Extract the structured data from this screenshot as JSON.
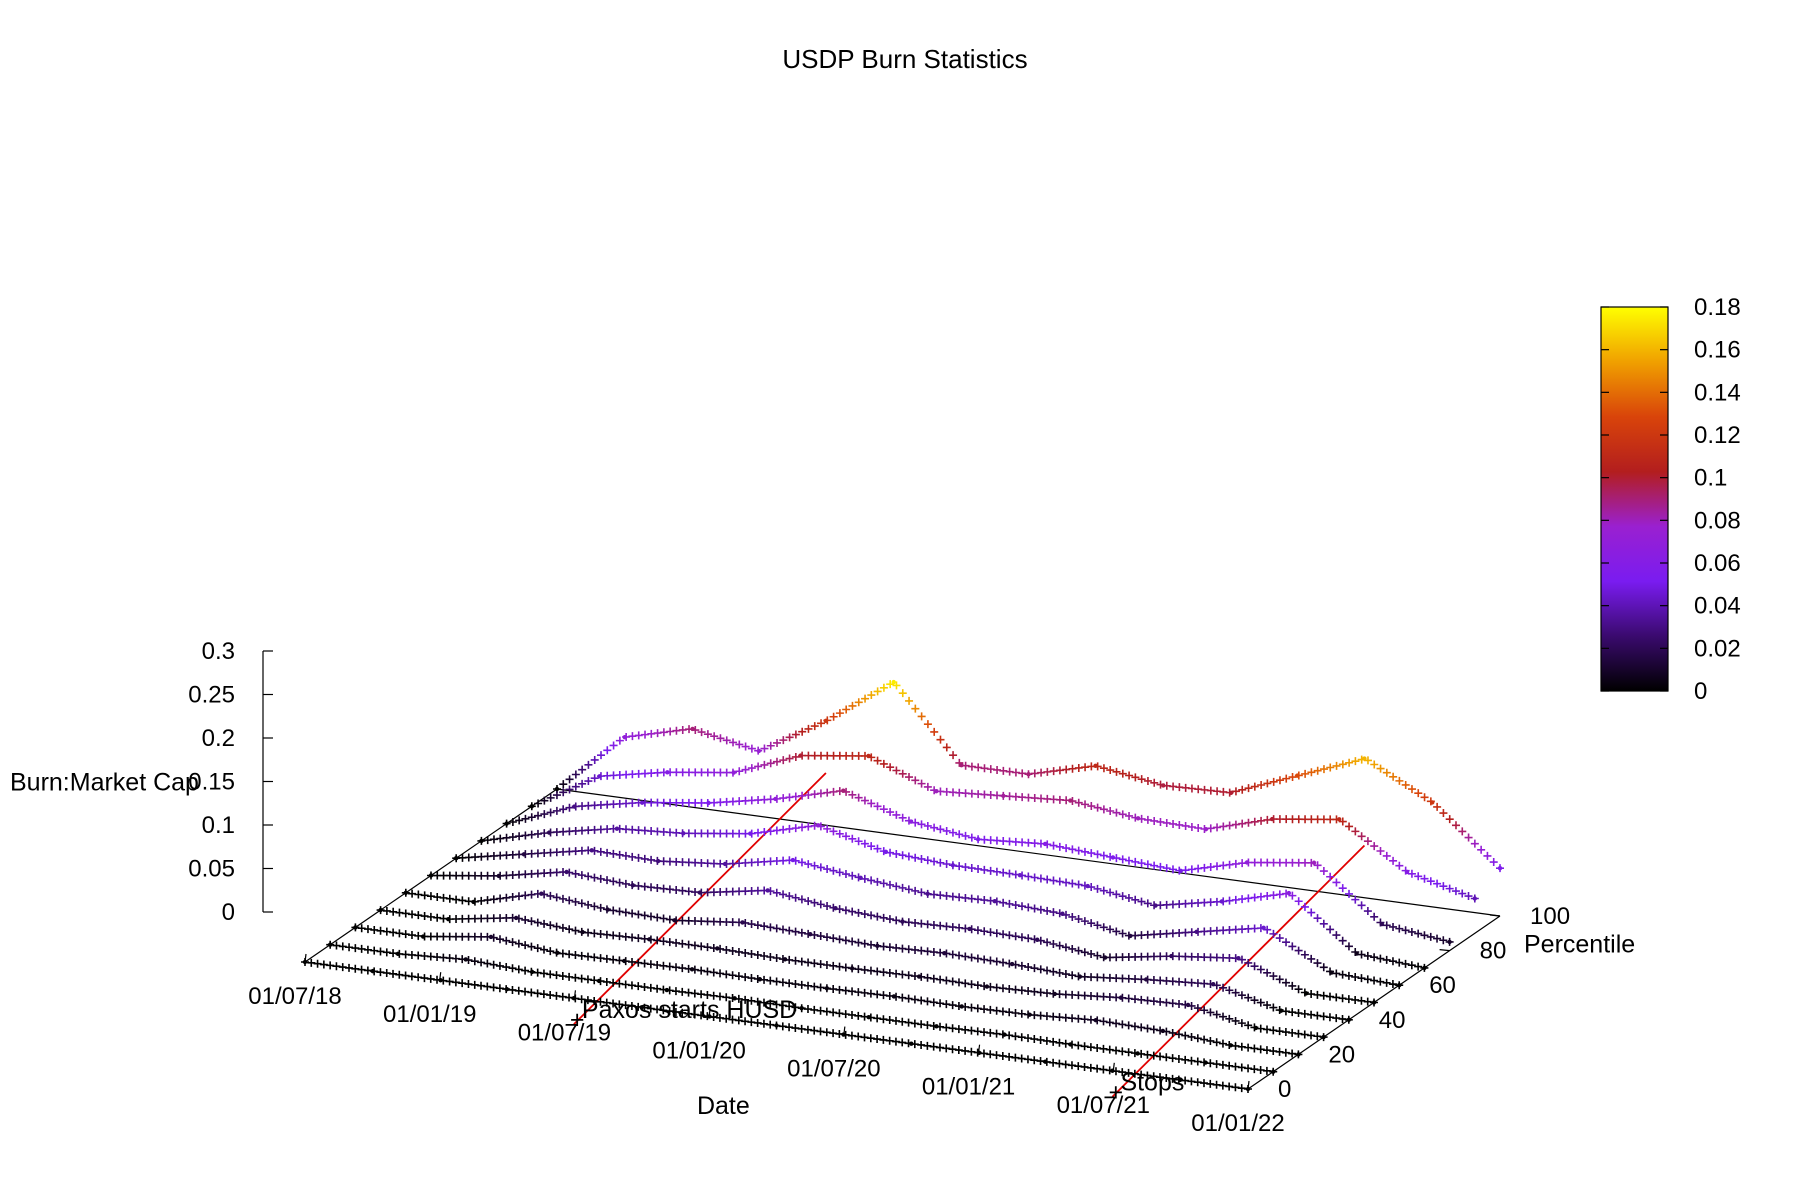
{
  "chart_data": {
    "type": "scatter",
    "title": "USDP Burn Statistics",
    "xlabel": "Date",
    "ylabel": "Percentile",
    "zlabel": "Burn:Market Cap",
    "x_ticks": [
      "01/07/18",
      "01/01/19",
      "01/07/19",
      "01/01/20",
      "01/07/20",
      "01/01/21",
      "01/07/21",
      "01/01/22"
    ],
    "xlim": [
      "01/07/18",
      "01/01/22"
    ],
    "ylim": [
      0,
      100
    ],
    "y_ticks": [
      "0",
      "20",
      "40",
      "60",
      "80",
      "100"
    ],
    "zlim": [
      0,
      0.3
    ],
    "z_ticks": [
      "0",
      "0.05",
      "0.1",
      "0.15",
      "0.2",
      "0.25",
      "0.3"
    ],
    "colorbar": {
      "range": [
        0,
        0.18
      ],
      "ticks": [
        "0",
        "0.02",
        "0.04",
        "0.06",
        "0.08",
        "0.1",
        "0.12",
        "0.14",
        "0.16",
        "0.18"
      ],
      "stops": [
        "#000000",
        "#3a0a6e",
        "#7a1cf0",
        "#9a20d0",
        "#b31e1e",
        "#d9440a",
        "#f0a000",
        "#ffff00"
      ]
    },
    "marker": "+",
    "percentiles": [
      0,
      10,
      20,
      30,
      40,
      50,
      60,
      70,
      80,
      90,
      100
    ],
    "series": [
      {
        "percentile": 0,
        "dates": [
          "01/07/18",
          "01/10/18",
          "01/01/19",
          "01/04/19",
          "01/07/19",
          "01/10/19",
          "01/01/20",
          "01/04/20",
          "01/07/20",
          "01/10/20",
          "01/01/21",
          "01/04/21",
          "01/07/21",
          "01/10/21",
          "01/01/22"
        ],
        "values": [
          0.0,
          0.0,
          0.0,
          0.0,
          0.0,
          0.0,
          0.0,
          0.0,
          0.0,
          0.0,
          0.0,
          0.0,
          0.0,
          0.0,
          0.0
        ]
      },
      {
        "percentile": 10,
        "dates": [
          "01/07/18",
          "01/10/18",
          "01/01/19",
          "01/04/19",
          "01/07/19",
          "01/10/19",
          "01/01/20",
          "01/04/20",
          "01/07/20",
          "01/10/20",
          "01/01/21",
          "01/04/21",
          "01/07/21",
          "01/10/21",
          "01/01/22"
        ],
        "values": [
          0.0,
          0.0,
          0.004,
          0.0,
          0.0,
          0.0,
          0.001,
          0.0,
          0.0,
          0.0,
          0.001,
          0.0,
          0.0,
          0.0,
          0.0
        ]
      },
      {
        "percentile": 20,
        "dates": [
          "01/07/18",
          "01/10/18",
          "01/01/19",
          "01/04/19",
          "01/07/19",
          "01/10/19",
          "01/01/20",
          "01/04/20",
          "01/07/20",
          "01/10/20",
          "01/01/21",
          "01/04/21",
          "01/07/21",
          "01/10/21",
          "01/01/22"
        ],
        "values": [
          0.0,
          0.0,
          0.01,
          0.002,
          0.003,
          0.004,
          0.003,
          0.003,
          0.004,
          0.003,
          0.004,
          0.008,
          0.006,
          0.0,
          0.0
        ]
      },
      {
        "percentile": 30,
        "dates": [
          "01/07/18",
          "01/10/18",
          "01/01/19",
          "01/04/19",
          "01/07/19",
          "01/10/19",
          "01/01/20",
          "01/04/20",
          "01/07/20",
          "01/10/20",
          "01/01/21",
          "01/04/21",
          "01/07/21",
          "01/10/21",
          "01/01/22"
        ],
        "values": [
          0.0,
          0.0,
          0.012,
          0.006,
          0.008,
          0.008,
          0.006,
          0.006,
          0.007,
          0.006,
          0.008,
          0.014,
          0.016,
          0.0,
          0.0
        ]
      },
      {
        "percentile": 40,
        "dates": [
          "01/07/18",
          "01/10/18",
          "01/01/19",
          "01/04/19",
          "01/07/19",
          "01/10/19",
          "01/01/20",
          "01/04/20",
          "01/07/20",
          "01/10/20",
          "01/01/21",
          "01/04/21",
          "01/07/21",
          "01/10/21",
          "01/01/22"
        ],
        "values": [
          0.0,
          0.0,
          0.02,
          0.012,
          0.01,
          0.018,
          0.015,
          0.012,
          0.014,
          0.012,
          0.008,
          0.015,
          0.02,
          0.0,
          0.0
        ]
      },
      {
        "percentile": 50,
        "dates": [
          "01/07/18",
          "01/10/18",
          "01/01/19",
          "01/04/19",
          "01/07/19",
          "01/10/19",
          "01/01/20",
          "01/04/20",
          "01/07/20",
          "01/10/20",
          "01/01/21",
          "01/04/21",
          "01/07/21",
          "01/10/21",
          "01/01/22"
        ],
        "values": [
          0.0,
          0.01,
          0.025,
          0.02,
          0.022,
          0.035,
          0.025,
          0.02,
          0.022,
          0.02,
          0.01,
          0.022,
          0.03,
          0.0,
          0.0
        ]
      },
      {
        "percentile": 60,
        "dates": [
          "01/07/18",
          "01/10/18",
          "01/01/19",
          "01/04/19",
          "01/07/19",
          "01/10/19",
          "01/01/20",
          "01/04/20",
          "01/07/20",
          "01/10/20",
          "01/01/21",
          "01/04/21",
          "01/07/21",
          "01/10/21",
          "01/01/22"
        ],
        "values": [
          0.0,
          0.015,
          0.03,
          0.028,
          0.035,
          0.05,
          0.04,
          0.032,
          0.034,
          0.03,
          0.015,
          0.03,
          0.045,
          0.004,
          0.0
        ]
      },
      {
        "percentile": 70,
        "dates": [
          "01/07/18",
          "01/10/18",
          "01/01/19",
          "01/04/19",
          "01/07/19",
          "01/10/19",
          "01/01/20",
          "01/04/20",
          "01/07/20",
          "01/10/20",
          "01/01/21",
          "01/04/21",
          "01/07/21",
          "01/10/21",
          "01/01/22"
        ],
        "values": [
          0.0,
          0.02,
          0.035,
          0.04,
          0.05,
          0.07,
          0.05,
          0.045,
          0.044,
          0.042,
          0.03,
          0.045,
          0.065,
          0.006,
          0.0
        ]
      },
      {
        "percentile": 80,
        "dates": [
          "01/07/18",
          "01/10/18",
          "01/01/19",
          "01/04/19",
          "01/07/19",
          "01/10/19",
          "01/01/20",
          "01/04/20",
          "01/07/20",
          "01/10/20",
          "01/01/21",
          "01/04/21",
          "01/07/21",
          "01/10/21",
          "01/01/22"
        ],
        "values": [
          0.0,
          0.03,
          0.045,
          0.055,
          0.07,
          0.09,
          0.065,
          0.055,
          0.06,
          0.055,
          0.05,
          0.07,
          0.08,
          0.02,
          0.01
        ]
      },
      {
        "percentile": 90,
        "dates": [
          "01/07/18",
          "01/10/18",
          "01/01/19",
          "01/04/19",
          "01/07/19",
          "01/10/19",
          "01/01/20",
          "01/04/20",
          "01/07/20",
          "01/10/20",
          "01/01/21",
          "01/04/21",
          "01/07/21",
          "01/10/21",
          "01/01/22"
        ],
        "values": [
          0.0,
          0.045,
          0.06,
          0.07,
          0.1,
          0.11,
          0.08,
          0.085,
          0.09,
          0.08,
          0.078,
          0.1,
          0.11,
          0.06,
          0.04
        ]
      },
      {
        "percentile": 100,
        "dates": [
          "01/07/18",
          "01/10/18",
          "01/01/19",
          "01/04/19",
          "01/07/19",
          "01/10/19",
          "01/01/20",
          "01/04/20",
          "01/07/20",
          "01/10/20",
          "01/01/21",
          "01/04/21",
          "01/07/21",
          "01/10/21",
          "01/01/22"
        ],
        "values": [
          0.0,
          0.07,
          0.09,
          0.075,
          0.12,
          0.175,
          0.09,
          0.09,
          0.11,
          0.098,
          0.1,
          0.13,
          0.16,
          0.12,
          0.055
        ]
      }
    ],
    "annotations": [
      {
        "text": "Paxos starts HUSD",
        "date": "01/07/19",
        "z_end": 0.06
      },
      {
        "text": "Stops",
        "date": "01/07/21",
        "z_end": 0.06
      }
    ]
  }
}
